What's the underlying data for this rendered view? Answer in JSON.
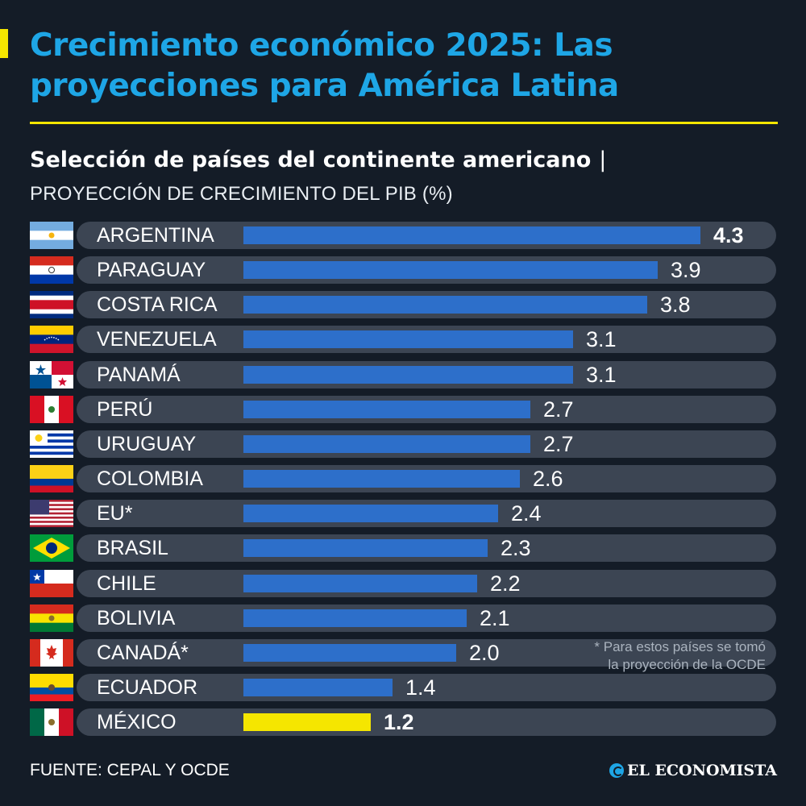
{
  "header": {
    "title": "Crecimiento económico 2025: Las proyecciones para América Latina",
    "subtitle": "Selección de países del continente americano",
    "separator": "|",
    "metric_label": "PROYECCIÓN DE CRECIMIENTO DEL PIB (%)"
  },
  "colors": {
    "background": "#141c27",
    "title": "#1ea6e6",
    "accent": "#f5e600",
    "bar": "#2d6fca",
    "highlight_bar": "#f5e600",
    "row_track": "#3c4553"
  },
  "chart_data": {
    "type": "bar",
    "orientation": "horizontal",
    "title": "Crecimiento económico 2025: Las proyecciones para América Latina",
    "subtitle": "Selección de países del continente americano | PROYECCIÓN DE CRECIMIENTO DEL PIB (%)",
    "categories": [
      "ARGENTINA",
      "PARAGUAY",
      "COSTA RICA",
      "VENEZUELA",
      "PANAMÁ",
      "PERÚ",
      "URUGUAY",
      "COLOMBIA",
      "EU*",
      "BRASIL",
      "CHILE",
      "BOLIVIA",
      "CANADÁ*",
      "ECUADOR",
      "MÉXICO"
    ],
    "values": [
      4.3,
      3.9,
      3.8,
      3.1,
      3.1,
      2.7,
      2.7,
      2.6,
      2.4,
      2.3,
      2.2,
      2.1,
      2.0,
      1.4,
      1.2
    ],
    "value_labels": [
      "4.3",
      "3.9",
      "3.8",
      "3.1",
      "3.1",
      "2.7",
      "2.7",
      "2.6",
      "2.4",
      "2.3",
      "2.2",
      "2.1",
      "2.0",
      "1.4",
      "1.2"
    ],
    "flags": [
      "argentina-flag",
      "paraguay-flag",
      "costa-rica-flag",
      "venezuela-flag",
      "panama-flag",
      "peru-flag",
      "uruguay-flag",
      "colombia-flag",
      "usa-flag",
      "brazil-flag",
      "chile-flag",
      "bolivia-flag",
      "canada-flag",
      "ecuador-flag",
      "mexico-flag"
    ],
    "highlight": "MÉXICO",
    "bold_values": [
      "ARGENTINA",
      "MÉXICO"
    ],
    "xlim": [
      0,
      4.3
    ],
    "grid": false
  },
  "footnote": {
    "line1": "* Para estos países se tomó",
    "line2": "la proyección de la OCDE"
  },
  "footer": {
    "source": "FUENTE: CEPAL Y OCDE",
    "brand": "EL ECONOMISTA"
  }
}
